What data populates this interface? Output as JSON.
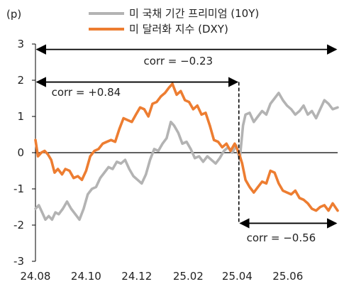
{
  "chart_data": {
    "type": "line",
    "unit_label": "(p)",
    "ylim": [
      -3,
      3
    ],
    "yticks": [
      "3",
      "2",
      "1",
      "0",
      "-1",
      "-2",
      "-3"
    ],
    "xticks": [
      "24.08",
      "24.10",
      "24.12",
      "25.02",
      "25.04",
      "25.06"
    ],
    "x_start": "2024-08-01",
    "x_end": "2025-07-31",
    "legend_position": "top",
    "series": [
      {
        "name": "미 국채 기간 프리미엄 (10Y)",
        "color": "#b3b3b3",
        "points": [
          [
            "2024-08-01",
            -1.55
          ],
          [
            "2024-08-05",
            -1.45
          ],
          [
            "2024-08-09",
            -1.65
          ],
          [
            "2024-08-13",
            -1.85
          ],
          [
            "2024-08-17",
            -1.75
          ],
          [
            "2024-08-21",
            -1.85
          ],
          [
            "2024-08-25",
            -1.65
          ],
          [
            "2024-08-29",
            -1.7
          ],
          [
            "2024-09-03",
            -1.55
          ],
          [
            "2024-09-08",
            -1.35
          ],
          [
            "2024-09-13",
            -1.55
          ],
          [
            "2024-09-18",
            -1.7
          ],
          [
            "2024-09-23",
            -1.85
          ],
          [
            "2024-09-28",
            -1.55
          ],
          [
            "2024-10-03",
            -1.15
          ],
          [
            "2024-10-08",
            -1.0
          ],
          [
            "2024-10-13",
            -0.95
          ],
          [
            "2024-10-18",
            -0.7
          ],
          [
            "2024-10-23",
            -0.55
          ],
          [
            "2024-10-28",
            -0.4
          ],
          [
            "2024-11-02",
            -0.45
          ],
          [
            "2024-11-07",
            -0.25
          ],
          [
            "2024-11-12",
            -0.3
          ],
          [
            "2024-11-17",
            -0.2
          ],
          [
            "2024-11-22",
            -0.45
          ],
          [
            "2024-11-27",
            -0.65
          ],
          [
            "2024-12-02",
            -0.75
          ],
          [
            "2024-12-07",
            -0.85
          ],
          [
            "2024-12-12",
            -0.6
          ],
          [
            "2024-12-17",
            -0.2
          ],
          [
            "2024-12-22",
            0.1
          ],
          [
            "2024-12-27",
            0.05
          ],
          [
            "2025-01-01",
            0.25
          ],
          [
            "2025-01-06",
            0.4
          ],
          [
            "2025-01-11",
            0.85
          ],
          [
            "2025-01-15",
            0.75
          ],
          [
            "2025-01-20",
            0.55
          ],
          [
            "2025-01-25",
            0.25
          ],
          [
            "2025-01-30",
            0.3
          ],
          [
            "2025-02-04",
            0.1
          ],
          [
            "2025-02-09",
            -0.15
          ],
          [
            "2025-02-14",
            -0.1
          ],
          [
            "2025-02-19",
            -0.25
          ],
          [
            "2025-02-24",
            -0.1
          ],
          [
            "2025-03-01",
            -0.2
          ],
          [
            "2025-03-06",
            -0.3
          ],
          [
            "2025-03-11",
            -0.15
          ],
          [
            "2025-03-16",
            0.05
          ],
          [
            "2025-03-21",
            0.15
          ],
          [
            "2025-03-26",
            0.0
          ],
          [
            "2025-03-31",
            0.2
          ],
          [
            "2025-04-04",
            -0.2
          ],
          [
            "2025-04-08",
            0.75
          ],
          [
            "2025-04-11",
            1.05
          ],
          [
            "2025-04-16",
            1.1
          ],
          [
            "2025-04-21",
            0.85
          ],
          [
            "2025-04-26",
            1.0
          ],
          [
            "2025-05-01",
            1.15
          ],
          [
            "2025-05-06",
            1.05
          ],
          [
            "2025-05-11",
            1.35
          ],
          [
            "2025-05-16",
            1.5
          ],
          [
            "2025-05-21",
            1.65
          ],
          [
            "2025-05-26",
            1.45
          ],
          [
            "2025-05-31",
            1.3
          ],
          [
            "2025-06-05",
            1.2
          ],
          [
            "2025-06-10",
            1.05
          ],
          [
            "2025-06-15",
            1.15
          ],
          [
            "2025-06-20",
            1.3
          ],
          [
            "2025-06-25",
            1.05
          ],
          [
            "2025-06-30",
            1.15
          ],
          [
            "2025-07-05",
            0.95
          ],
          [
            "2025-07-10",
            1.2
          ],
          [
            "2025-07-15",
            1.45
          ],
          [
            "2025-07-20",
            1.35
          ],
          [
            "2025-07-25",
            1.2
          ],
          [
            "2025-07-31",
            1.25
          ]
        ]
      },
      {
        "name": "미 달러화 지수 (DXY)",
        "color": "#ed7d31",
        "points": [
          [
            "2024-08-01",
            0.35
          ],
          [
            "2024-08-04",
            -0.1
          ],
          [
            "2024-08-08",
            0.0
          ],
          [
            "2024-08-12",
            0.05
          ],
          [
            "2024-08-16",
            -0.05
          ],
          [
            "2024-08-20",
            -0.2
          ],
          [
            "2024-08-24",
            -0.55
          ],
          [
            "2024-08-28",
            -0.45
          ],
          [
            "2024-09-02",
            -0.6
          ],
          [
            "2024-09-06",
            -0.45
          ],
          [
            "2024-09-11",
            -0.5
          ],
          [
            "2024-09-16",
            -0.7
          ],
          [
            "2024-09-21",
            -0.65
          ],
          [
            "2024-09-26",
            -0.75
          ],
          [
            "2024-10-01",
            -0.5
          ],
          [
            "2024-10-06",
            -0.1
          ],
          [
            "2024-10-11",
            0.05
          ],
          [
            "2024-10-16",
            0.1
          ],
          [
            "2024-10-21",
            0.25
          ],
          [
            "2024-10-26",
            0.3
          ],
          [
            "2024-10-31",
            0.35
          ],
          [
            "2024-11-05",
            0.3
          ],
          [
            "2024-11-10",
            0.65
          ],
          [
            "2024-11-15",
            0.95
          ],
          [
            "2024-11-20",
            0.9
          ],
          [
            "2024-11-25",
            0.85
          ],
          [
            "2024-11-30",
            1.05
          ],
          [
            "2024-12-05",
            1.25
          ],
          [
            "2024-12-10",
            1.2
          ],
          [
            "2024-12-15",
            1.0
          ],
          [
            "2024-12-20",
            1.35
          ],
          [
            "2024-12-25",
            1.4
          ],
          [
            "2024-12-30",
            1.55
          ],
          [
            "2025-01-04",
            1.65
          ],
          [
            "2025-01-09",
            1.8
          ],
          [
            "2025-01-13",
            1.9
          ],
          [
            "2025-01-18",
            1.6
          ],
          [
            "2025-01-23",
            1.7
          ],
          [
            "2025-01-28",
            1.45
          ],
          [
            "2025-02-02",
            1.4
          ],
          [
            "2025-02-07",
            1.2
          ],
          [
            "2025-02-12",
            1.3
          ],
          [
            "2025-02-17",
            1.05
          ],
          [
            "2025-02-22",
            1.1
          ],
          [
            "2025-02-27",
            0.75
          ],
          [
            "2025-03-04",
            0.35
          ],
          [
            "2025-03-09",
            0.3
          ],
          [
            "2025-03-14",
            0.15
          ],
          [
            "2025-03-19",
            0.25
          ],
          [
            "2025-03-24",
            0.05
          ],
          [
            "2025-03-29",
            0.25
          ],
          [
            "2025-04-03",
            0.0
          ],
          [
            "2025-04-07",
            -0.3
          ],
          [
            "2025-04-11",
            -0.75
          ],
          [
            "2025-04-16",
            -0.95
          ],
          [
            "2025-04-21",
            -1.1
          ],
          [
            "2025-04-26",
            -0.95
          ],
          [
            "2025-05-01",
            -0.8
          ],
          [
            "2025-05-06",
            -0.85
          ],
          [
            "2025-05-11",
            -0.5
          ],
          [
            "2025-05-16",
            -0.55
          ],
          [
            "2025-05-21",
            -0.85
          ],
          [
            "2025-05-26",
            -1.05
          ],
          [
            "2025-05-31",
            -1.1
          ],
          [
            "2025-06-05",
            -1.15
          ],
          [
            "2025-06-10",
            -1.05
          ],
          [
            "2025-06-15",
            -1.25
          ],
          [
            "2025-06-20",
            -1.3
          ],
          [
            "2025-06-25",
            -1.4
          ],
          [
            "2025-06-30",
            -1.55
          ],
          [
            "2025-07-05",
            -1.6
          ],
          [
            "2025-07-10",
            -1.5
          ],
          [
            "2025-07-15",
            -1.45
          ],
          [
            "2025-07-20",
            -1.6
          ],
          [
            "2025-07-25",
            -1.4
          ],
          [
            "2025-07-31",
            -1.6
          ]
        ]
      }
    ],
    "annotations": [
      {
        "label": "corr = −0.23",
        "from": "2024-08-01",
        "to": "2025-07-31",
        "y": 2.85,
        "label_x": "2025-01-20",
        "label_y": 2.53
      },
      {
        "label": "corr = +0.84",
        "from": "2024-08-01",
        "to": "2025-04-03",
        "y": 1.95,
        "label_x": "2024-10-01",
        "label_y": 1.67
      },
      {
        "label": "corr = −0.56",
        "from": "2025-04-03",
        "to": "2025-07-31",
        "y": -1.95,
        "label_x": "2025-05-24",
        "label_y": -2.35
      }
    ],
    "vline": {
      "x": "2025-04-03",
      "from": -1.95,
      "to": 1.95
    }
  }
}
